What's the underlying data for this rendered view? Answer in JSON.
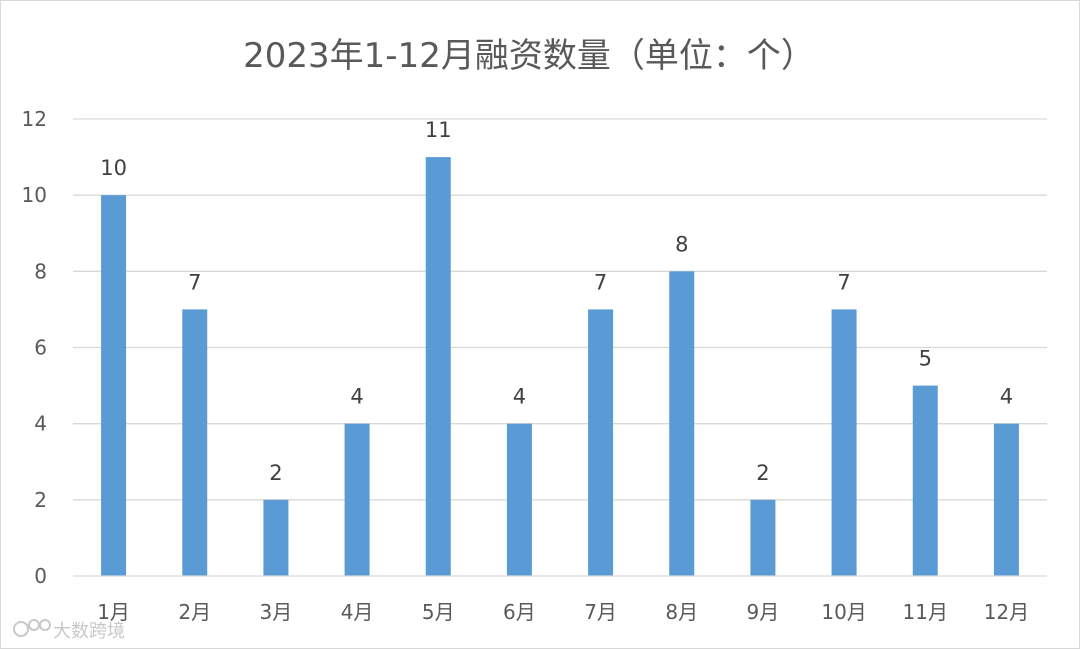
{
  "chart_data": {
    "type": "bar",
    "title": "2023年1-12月融资数量（单位：个）",
    "categories": [
      "1月",
      "2月",
      "3月",
      "4月",
      "5月",
      "6月",
      "7月",
      "8月",
      "9月",
      "10月",
      "11月",
      "12月"
    ],
    "series": [
      {
        "values": [
          10,
          7,
          2,
          4,
          11,
          4,
          7,
          8,
          2,
          7,
          5,
          4
        ]
      }
    ],
    "ylim": [
      0,
      12
    ],
    "yticks": [
      0,
      2,
      4,
      6,
      8,
      10,
      12
    ],
    "grid": true,
    "legend": "none",
    "bar_color": "#5B9BD5",
    "data_labels": true
  },
  "watermark": {
    "text": "大数跨境"
  }
}
